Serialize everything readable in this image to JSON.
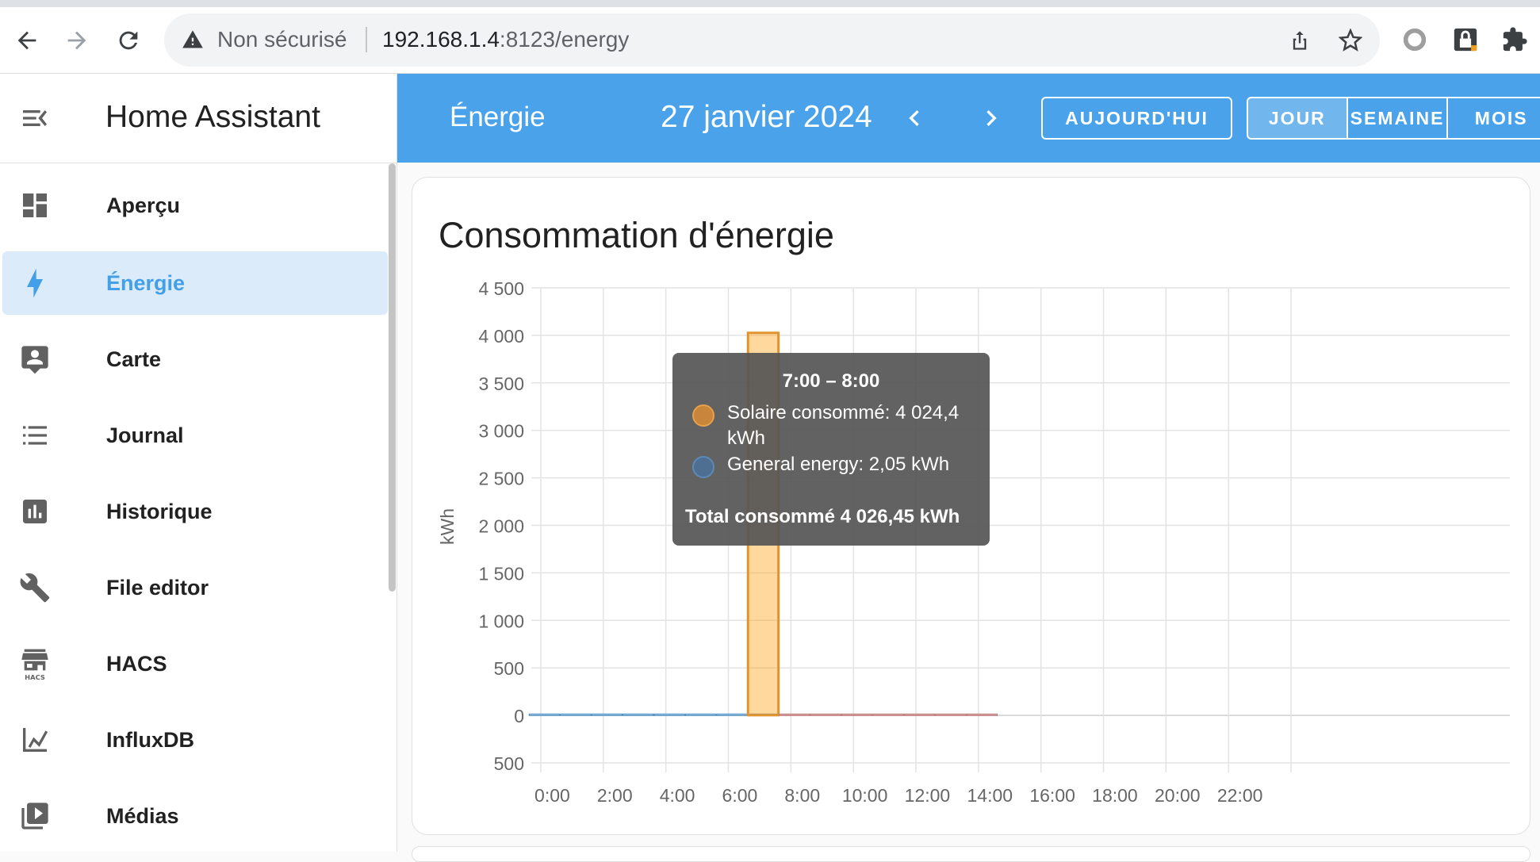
{
  "browser": {
    "security_label": "Non sécurisé",
    "url_host": "192.168.1.4",
    "url_rest": ":8123/energy"
  },
  "sidebar": {
    "app_title": "Home Assistant",
    "items": [
      {
        "label": "Aperçu",
        "icon": "dashboard-icon",
        "active": false
      },
      {
        "label": "Énergie",
        "icon": "lightning-bolt-icon",
        "active": true
      },
      {
        "label": "Carte",
        "icon": "map-account-icon",
        "active": false
      },
      {
        "label": "Journal",
        "icon": "logbook-list-icon",
        "active": false
      },
      {
        "label": "Historique",
        "icon": "history-chart-icon",
        "active": false
      },
      {
        "label": "File editor",
        "icon": "wrench-icon",
        "active": false
      },
      {
        "label": "HACS",
        "icon": "hacs-store-icon",
        "active": false
      },
      {
        "label": "InfluxDB",
        "icon": "line-chart-icon",
        "active": false
      },
      {
        "label": "Médias",
        "icon": "play-box-multiple-icon",
        "active": false
      }
    ]
  },
  "toolbar": {
    "page_title": "Énergie",
    "date_label": "27 janvier 2024",
    "today_label": "AUJOURD'HUI",
    "periods": [
      {
        "label": "JOUR",
        "active": true
      },
      {
        "label": "SEMAINE",
        "active": false
      },
      {
        "label": "MOIS",
        "active": false
      }
    ]
  },
  "card": {
    "title": "Consommation d'énergie"
  },
  "colors": {
    "accent": "#4aa3ea",
    "solar": "#ff9800",
    "grid": "#488fc2"
  },
  "chart_data": {
    "type": "bar",
    "ylabel": "kWh",
    "xlabel": "",
    "ylim": [
      -500,
      4500
    ],
    "y_ticks": [
      {
        "value": 4500,
        "label": "4 500"
      },
      {
        "value": 4000,
        "label": "4 000"
      },
      {
        "value": 3500,
        "label": "3 500"
      },
      {
        "value": 3000,
        "label": "3 000"
      },
      {
        "value": 2500,
        "label": "2 500"
      },
      {
        "value": 2000,
        "label": "2 000"
      },
      {
        "value": 1500,
        "label": "1 500"
      },
      {
        "value": 1000,
        "label": "1 000"
      },
      {
        "value": 500,
        "label": "500"
      },
      {
        "value": 0,
        "label": "0"
      },
      {
        "value": -500,
        "label": "500"
      }
    ],
    "x_tick_labels": [
      "0:00",
      "2:00",
      "4:00",
      "6:00",
      "8:00",
      "10:00",
      "12:00",
      "14:00",
      "16:00",
      "18:00",
      "20:00",
      "22:00"
    ],
    "categories": [
      "0:00",
      "1:00",
      "2:00",
      "3:00",
      "4:00",
      "5:00",
      "6:00",
      "7:00",
      "8:00",
      "9:00",
      "10:00",
      "11:00",
      "12:00",
      "13:00",
      "14:00",
      "15:00",
      "16:00",
      "17:00",
      "18:00",
      "19:00",
      "20:00",
      "21:00",
      "22:00",
      "23:00"
    ],
    "series": [
      {
        "name": "Solaire consommé",
        "color": "#ff9800",
        "values": [
          0,
          0,
          0,
          0,
          0,
          0,
          0,
          4024.4,
          0,
          0,
          0,
          0,
          0,
          0,
          0,
          null,
          null,
          null,
          null,
          null,
          null,
          null,
          null,
          null
        ]
      },
      {
        "name": "General energy",
        "color": "#488fc2",
        "values": [
          2,
          2,
          2,
          2,
          2,
          2,
          2,
          2.05,
          2,
          2,
          2,
          2,
          2,
          2,
          2,
          null,
          null,
          null,
          null,
          null,
          null,
          null,
          null,
          null
        ]
      }
    ]
  },
  "tooltip": {
    "title": "7:00 – 8:00",
    "rows": [
      {
        "text": "Solaire consommé: 4 024,4 kWh",
        "color": "#c9853b"
      },
      {
        "text": "General energy: 2,05 kWh",
        "color": "#4e6f91"
      }
    ],
    "total": "Total consommé 4 026,45 kWh"
  }
}
